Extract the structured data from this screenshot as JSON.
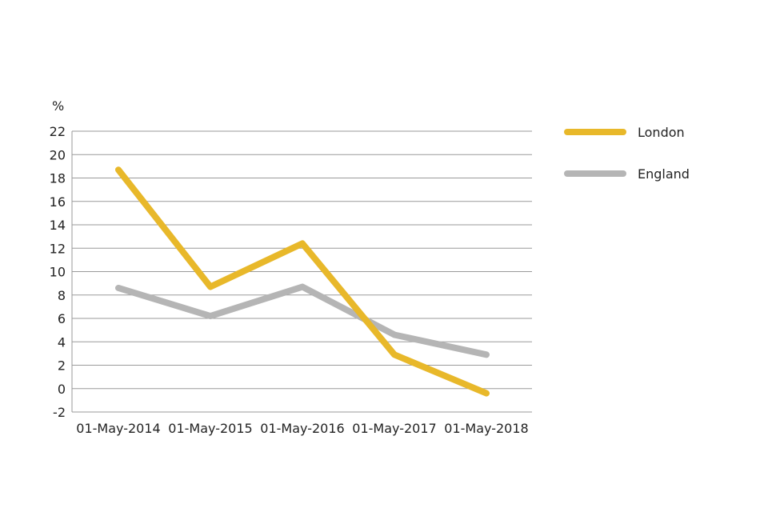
{
  "chart_data": {
    "type": "line",
    "ylabel": "%",
    "ylim": [
      -2,
      22
    ],
    "yticks": [
      22,
      20,
      18,
      16,
      14,
      12,
      10,
      8,
      6,
      4,
      2,
      0,
      -2
    ],
    "categories": [
      "01-May-2014",
      "01-May-2015",
      "01-May-2016",
      "01-May-2017",
      "01-May-2018"
    ],
    "grid": true,
    "legend_position": "right",
    "series": [
      {
        "name": "London",
        "color": "#e8b82a",
        "values": [
          18.7,
          8.7,
          12.4,
          2.9,
          -0.4
        ]
      },
      {
        "name": "England",
        "color": "#b5b5b5",
        "values": [
          8.6,
          6.2,
          8.7,
          4.6,
          2.9
        ]
      }
    ]
  }
}
